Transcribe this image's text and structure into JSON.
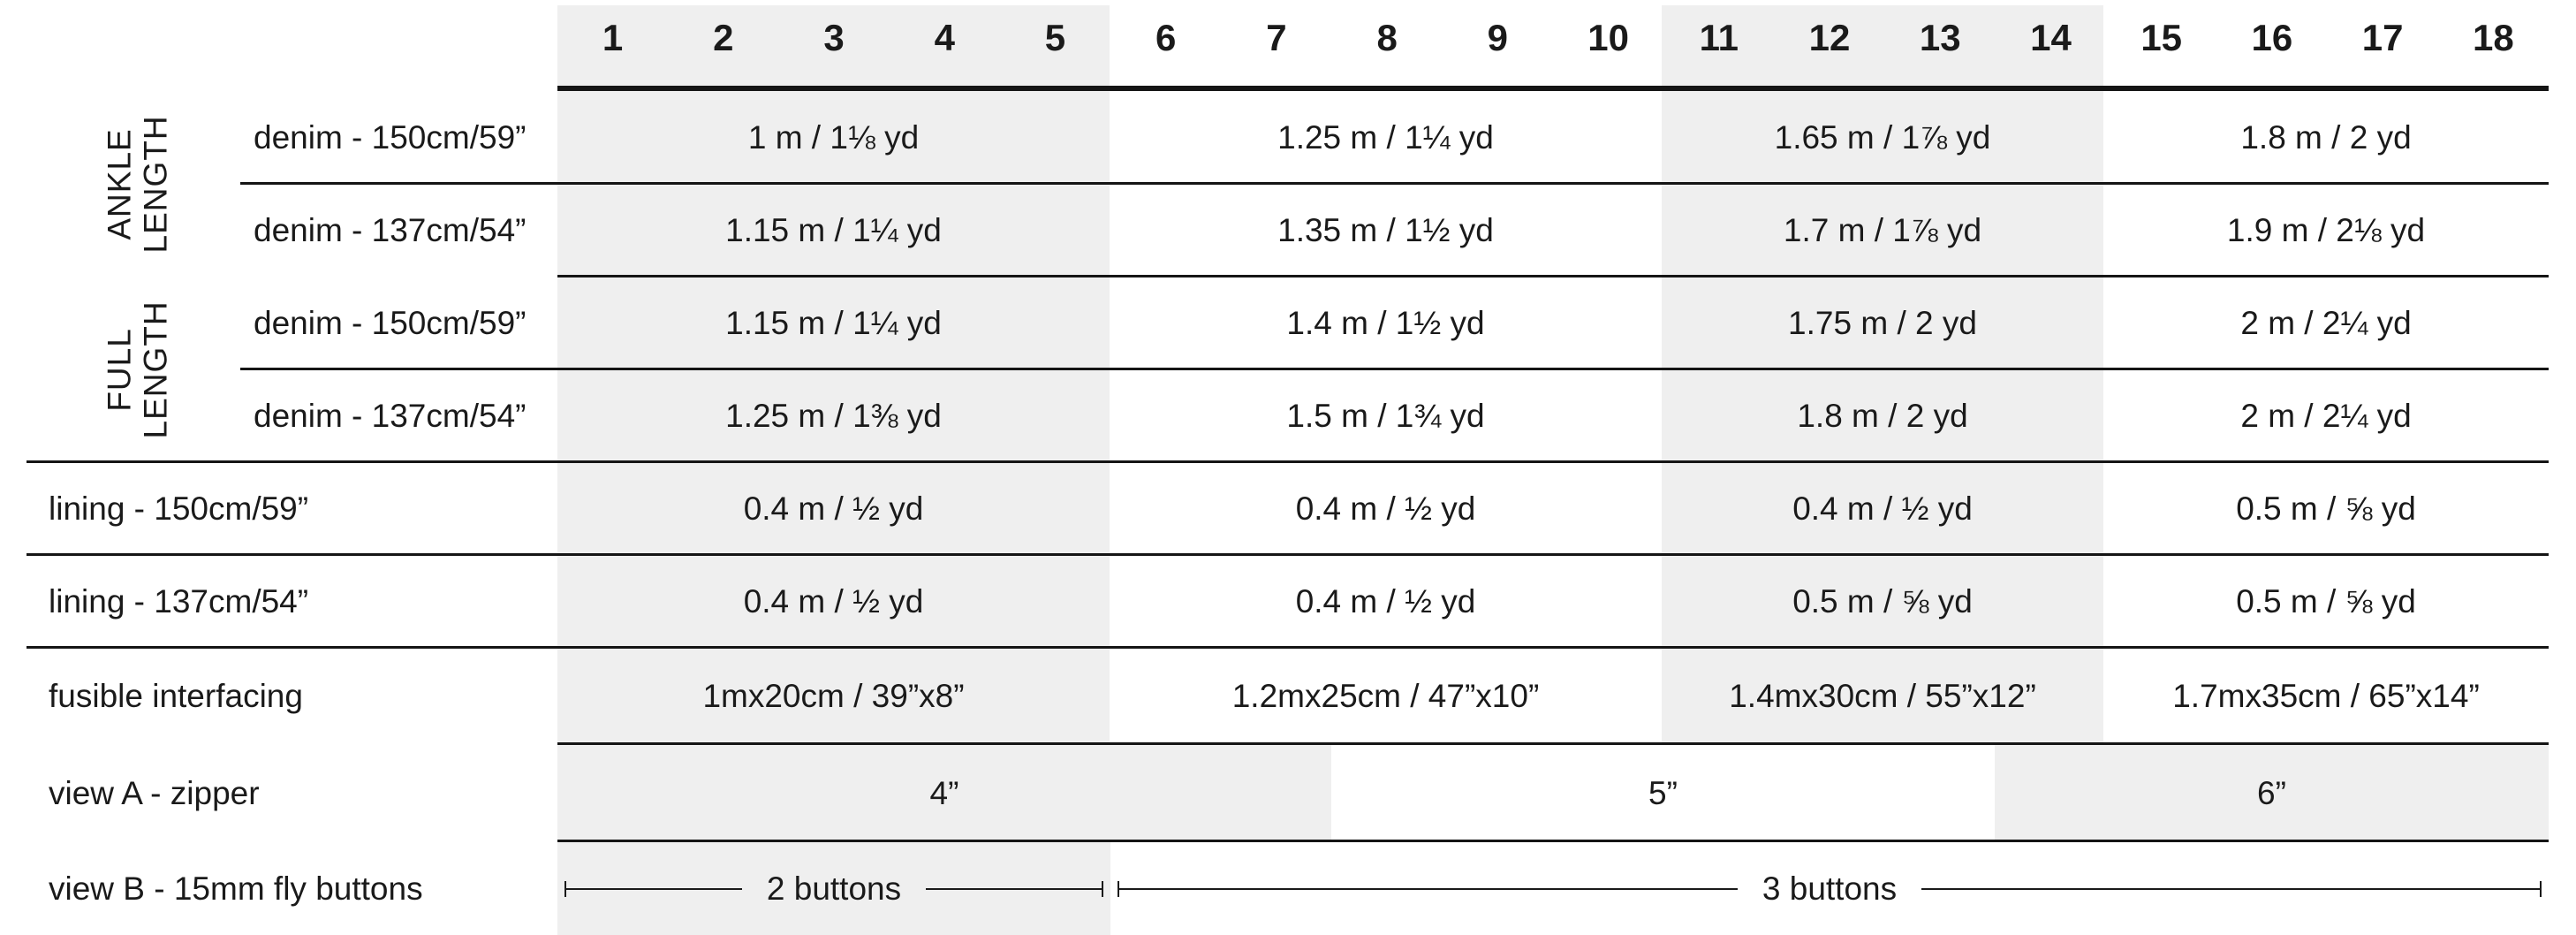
{
  "colors": {
    "shade": "#efefef",
    "rule": "#151515",
    "text": "#1a1a1a"
  },
  "header": {
    "sizes": [
      "1",
      "2",
      "3",
      "4",
      "5",
      "6",
      "7",
      "8",
      "9",
      "10",
      "11",
      "12",
      "13",
      "14",
      "15",
      "16",
      "17",
      "18"
    ],
    "size_groups": [
      "1-5",
      "6-10",
      "11-14",
      "15-18"
    ]
  },
  "row_groups": [
    {
      "label": "ANKLE\nLENGTH"
    },
    {
      "label": "FULL\nLENGTH"
    }
  ],
  "rows": [
    {
      "label": "denim - 150cm/59”",
      "values": [
        "1 m / 1⅛ yd",
        "1.25 m / 1¼ yd",
        "1.65 m / 1⅞ yd",
        "1.8 m / 2 yd"
      ]
    },
    {
      "label": "denim - 137cm/54”",
      "values": [
        "1.15 m / 1¼ yd",
        "1.35 m / 1½ yd",
        "1.7 m / 1⅞ yd",
        "1.9 m / 2⅛ yd"
      ]
    },
    {
      "label": "denim - 150cm/59”",
      "values": [
        "1.15 m / 1¼ yd",
        "1.4 m / 1½ yd",
        "1.75 m / 2 yd",
        "2 m / 2¼ yd"
      ]
    },
    {
      "label": "denim - 137cm/54”",
      "values": [
        "1.25 m / 1⅜ yd",
        "1.5 m / 1¾ yd",
        "1.8 m / 2 yd",
        "2 m / 2¼ yd"
      ]
    },
    {
      "label": "lining - 150cm/59”",
      "values": [
        "0.4 m / ½ yd",
        "0.4 m / ½ yd",
        "0.4 m / ½ yd",
        "0.5 m / ⅝ yd"
      ]
    },
    {
      "label": "lining - 137cm/54”",
      "values": [
        "0.4 m / ½ yd",
        "0.4 m / ½ yd",
        "0.5 m / ⅝ yd",
        "0.5 m / ⅝ yd"
      ]
    },
    {
      "label": "fusible interfacing",
      "values": [
        "1mx20cm / 39”x8”",
        "1.2mx25cm / 47”x10”",
        "1.4mx30cm / 55”x12”",
        "1.7mx35cm / 65”x14”"
      ]
    }
  ],
  "zipper_row": {
    "label": "view A - zipper",
    "values": [
      "4”",
      "5”",
      "6”"
    ],
    "size_spans": [
      "1-7",
      "8-13",
      "14-18"
    ]
  },
  "buttons_row": {
    "label": "view B - 15mm fly buttons",
    "values": [
      "2 buttons",
      "3 buttons"
    ],
    "size_spans": [
      "1-5",
      "6-18"
    ]
  }
}
